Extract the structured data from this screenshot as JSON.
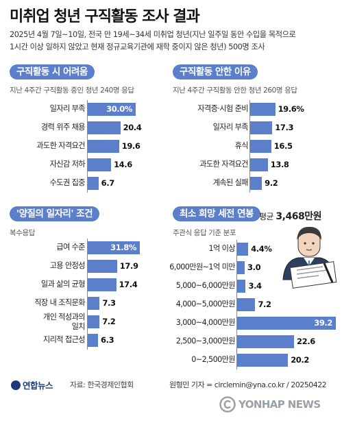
{
  "title": "미취업 청년 구직활동 조사 결과",
  "description": [
    "2025년 4월 7일~10일, 전국 만 19세~34세 미취업 청년(지난 일주일 동안 수입을 목적으로",
    "1시간 이상 일하지 않았고 현재 정규교육기관에 재학 중이지 않은 청년) 500명 조사"
  ],
  "average": {
    "label": "평균",
    "value": "3,468만원"
  },
  "footer": {
    "logo": "연합뉴스",
    "source": "자료: 한국경제인협회",
    "credit": "원형민 기자 = circlemin@yna.co.kr / 20250422",
    "watermark": "YONHAP NEWS"
  },
  "colors": {
    "bar": "#5b7fcb",
    "header": "#5b7fcb"
  },
  "chart_data": [
    {
      "type": "bar",
      "orientation": "horizontal",
      "title": "구직활동 시 어려움",
      "subtitle": "지난 4주간 구직활동 중인 청년 240명 응답",
      "categories": [
        "일자리 부족",
        "경력 위주 채용",
        "과도한 자격요건",
        "자신감 저하",
        "수도권 집중"
      ],
      "values": [
        30.0,
        20.4,
        19.6,
        14.6,
        6.7
      ],
      "value_labels": [
        "30.0%",
        "20.4",
        "19.6",
        "14.6",
        "6.7"
      ],
      "highlight_index": 0
    },
    {
      "type": "bar",
      "orientation": "horizontal",
      "title": "구직활동 안한 이유",
      "subtitle": "지난 4주간 구직활동 안한 청년 260명 응답",
      "categories": [
        "자격증·시험 준비",
        "일자리 부족",
        "휴식",
        "과도한 자격요건",
        "계속된 실패"
      ],
      "values": [
        19.6,
        17.3,
        16.5,
        13.8,
        9.2
      ],
      "value_labels": [
        "19.6%",
        "17.3",
        "16.5",
        "13.8",
        "9.2"
      ],
      "highlight_index": -1
    },
    {
      "type": "bar",
      "orientation": "horizontal",
      "title": "'양질의 일자리' 조건",
      "subtitle": "복수응답",
      "categories": [
        "급여 수준",
        "고용 안정성",
        "일과 삶의 균형",
        "직장 내 조직문화",
        "개인 적성과의\n일치",
        "지리적 접근성"
      ],
      "values": [
        31.8,
        17.9,
        17.4,
        7.3,
        7.2,
        6.3
      ],
      "value_labels": [
        "31.8%",
        "17.9",
        "17.4",
        "7.3",
        "7.2",
        "6.3"
      ],
      "highlight_index": 0
    },
    {
      "type": "bar",
      "orientation": "horizontal",
      "title": "최소 희망 세전 연봉",
      "subtitle": "주관식 응답 기준 분포",
      "categories": [
        "1억 이상",
        "6,000만원~1억 미만",
        "5,000~6,000만원",
        "4,000~5,000만원",
        "3,000~4,000만원",
        "2,500~3,000만원",
        "0~2,500만원"
      ],
      "values": [
        4.4,
        3.0,
        3.4,
        7.2,
        39.2,
        22.6,
        20.2
      ],
      "value_labels": [
        "4.4%",
        "3.0",
        "3.4",
        "7.2",
        "39.2",
        "22.6",
        "20.2"
      ],
      "highlight_index": 4
    }
  ]
}
